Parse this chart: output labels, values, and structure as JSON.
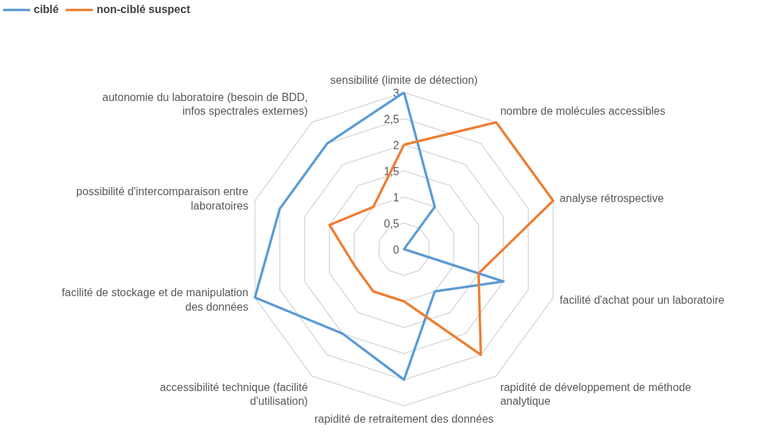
{
  "chart_data": {
    "type": "radar",
    "categories": [
      "sensibilité (limite de détection)",
      "nombre de molécules accessibles",
      "analyse rétrospective",
      "facilité d'achat pour un laboratoire",
      "rapidité de développement de méthode analytique",
      "rapidité de retraitement des données",
      "accessibilité technique (facilité d'utilisation)",
      "facilité de stockage et de manipulation des données",
      "possibilité d'intercomparaison entre laboratoires",
      "autonomie du laboratoire (besoin de BDD, infos spectrales externes)"
    ],
    "series": [
      {
        "name": "ciblé",
        "color": "#5b9bd5",
        "values": [
          3,
          1,
          0,
          2,
          1,
          2.5,
          2,
          3,
          2.5,
          2.5
        ]
      },
      {
        "name": "non-ciblé suspect",
        "color": "#ed7d31",
        "values": [
          2,
          3,
          3,
          1.5,
          2.5,
          1,
          1,
          1,
          1.5,
          1
        ]
      }
    ],
    "ylim": [
      0,
      3
    ],
    "yticks": [
      0,
      {
        "value": 0.5,
        "label": "0,5"
      },
      1,
      {
        "value": 1.5,
        "label": "1,5"
      },
      2,
      {
        "value": 2.5,
        "label": "2,5"
      },
      3
    ],
    "grid": true,
    "legend": "top left",
    "marker": "none",
    "line_style": "solid"
  }
}
